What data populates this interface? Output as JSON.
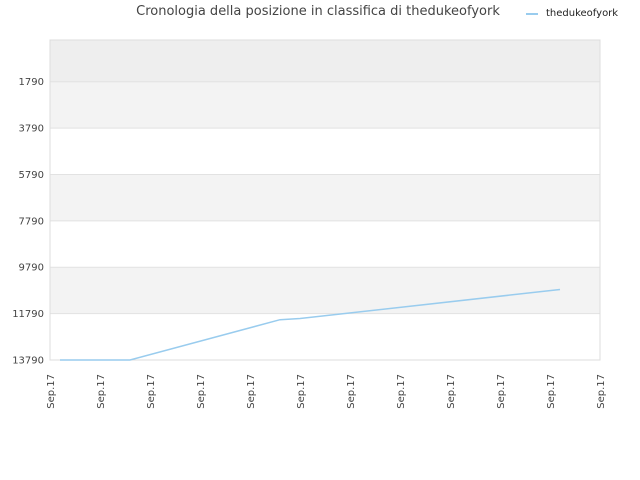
{
  "chart_data": {
    "type": "line",
    "title": "Cronologia della posizione in classifica di thedukeofyork",
    "xlabel": "",
    "ylabel": "",
    "x": [
      "Sep.17",
      "Sep.17",
      "Sep.17",
      "Sep.17",
      "Sep.17",
      "Sep.17",
      "Sep.17",
      "Sep.17",
      "Sep.17",
      "Sep.17",
      "Sep.17",
      "Sep.17"
    ],
    "y_ticks": [
      "1790",
      "3790",
      "5790",
      "7790",
      "9790",
      "11790",
      "13790"
    ],
    "ylim": [
      -10,
      13790
    ],
    "y_inverted": true,
    "grid": true,
    "legend_position": "top-right",
    "series": [
      {
        "name": "thedukeofyork",
        "color": "#99ccee",
        "x": [
          0.2,
          1.6,
          4.6,
          5.0,
          10.2
        ],
        "y": [
          13790,
          13790,
          12050,
          12000,
          10750
        ]
      }
    ]
  },
  "colors": {
    "band_dark": "#eeeeee",
    "band_light": "#f3f3f3",
    "band_white": "#ffffff",
    "axis_text": "#444444"
  }
}
